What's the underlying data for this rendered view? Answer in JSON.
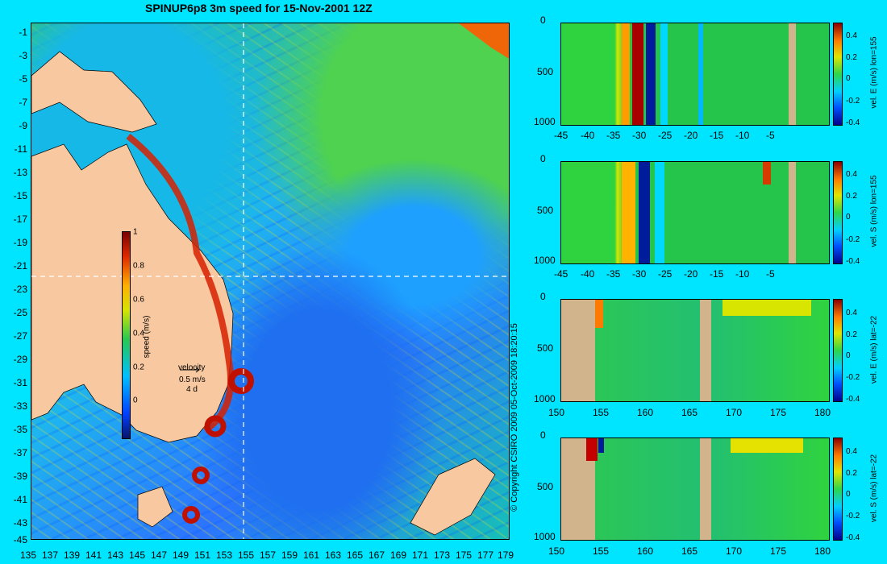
{
  "chart_data": {
    "type": "heatmap",
    "title": "SPINUP6p8 3m speed for 15-Nov-2001 12Z",
    "map": {
      "x_ticks": [
        "135",
        "137",
        "139",
        "141",
        "143",
        "145",
        "147",
        "149",
        "151",
        "153",
        "155",
        "157",
        "159",
        "161",
        "163",
        "165",
        "167",
        "169",
        "171",
        "173",
        "175",
        "177",
        "179"
      ],
      "y_ticks": [
        "-1",
        "-3",
        "-5",
        "-7",
        "-9",
        "-11",
        "-13",
        "-15",
        "-17",
        "-19",
        "-21",
        "-23",
        "-25",
        "-27",
        "-29",
        "-31",
        "-33",
        "-35",
        "-37",
        "-39",
        "-41",
        "-43",
        "-45"
      ],
      "colorbar_label": "speed (m/s)",
      "colorbar_ticks": [
        "1",
        "0.8",
        "0.6",
        "0.4",
        "0.2",
        "0"
      ],
      "scale_title": "velocity",
      "scale_speed": "0.5 m/s",
      "scale_time": "4 d",
      "copyright": "© Copyright CSIRO 2009   05-Oct-2009 18:20:15"
    },
    "panels": [
      {
        "ylabel": "vel. E (m/s) lon=155",
        "x_ticks": [
          "-45",
          "-40",
          "-35",
          "-30",
          "-25",
          "-20",
          "-15",
          "-10",
          "-5"
        ]
      },
      {
        "ylabel": "vel. S (m/s) lon=155",
        "x_ticks": [
          "-45",
          "-40",
          "-35",
          "-30",
          "-25",
          "-20",
          "-15",
          "-10",
          "-5"
        ]
      },
      {
        "ylabel": "vel. E (m/s) lat=-22",
        "x_ticks": [
          "150",
          "155",
          "160",
          "165",
          "170",
          "175",
          "180"
        ]
      },
      {
        "ylabel": "vel. S (m/s) lat=-22",
        "x_ticks": [
          "150",
          "155",
          "160",
          "165",
          "170",
          "175",
          "180"
        ]
      }
    ],
    "panel_y_ticks": [
      "0",
      "500",
      "1000"
    ],
    "panel_colorbar_ticks": [
      "0.4",
      "0.2",
      "0",
      "-0.2",
      "-0.4"
    ]
  }
}
